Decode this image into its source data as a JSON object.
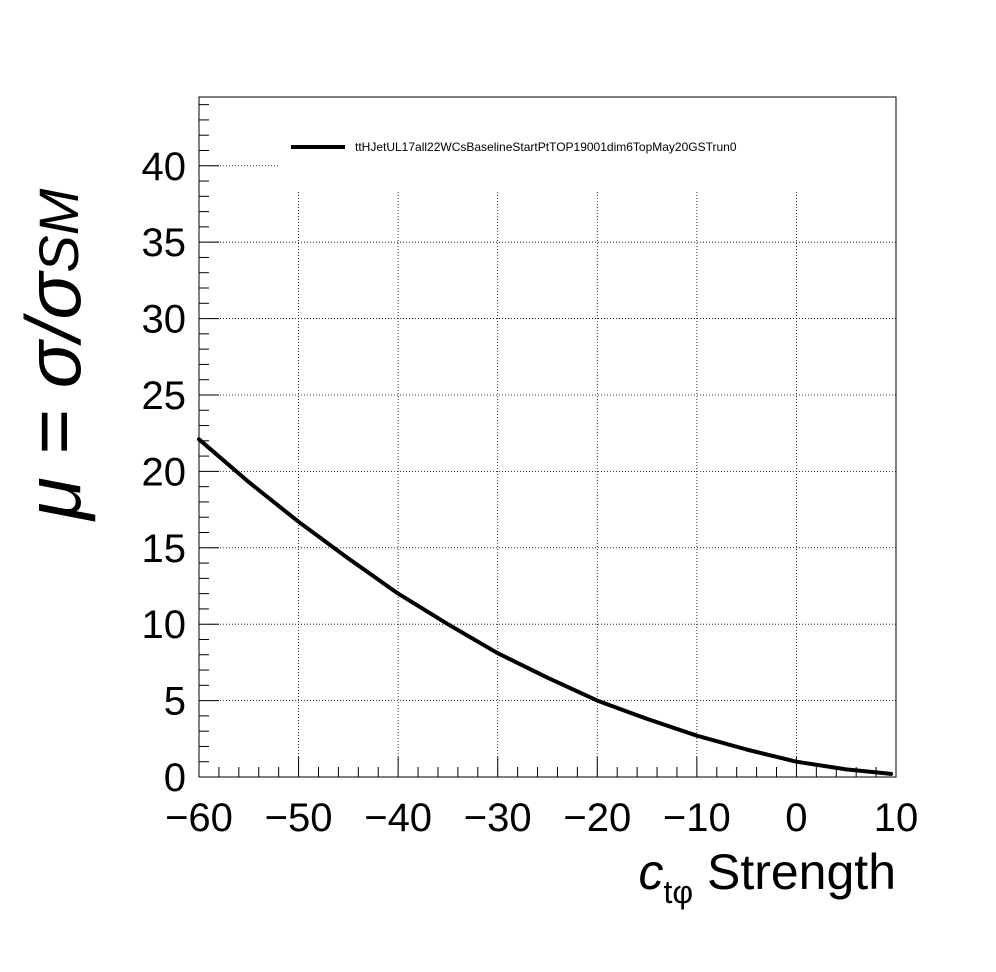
{
  "chart_data": {
    "type": "line",
    "xlabel": {
      "symbol": "c",
      "subscript": "tφ",
      "suffix": " Strength"
    },
    "ylabel": {
      "prefix": "μ = σ/σ",
      "subscript": "SM"
    },
    "xlim": [
      -60,
      10
    ],
    "ylim": [
      0,
      44.5
    ],
    "x_ticks": [
      -60,
      -50,
      -40,
      -30,
      -20,
      -10,
      0,
      10
    ],
    "x_tick_labels": [
      "−60",
      "−50",
      "−40",
      "−30",
      "−20",
      "−10",
      "0",
      "10"
    ],
    "y_ticks": [
      0,
      5,
      10,
      15,
      20,
      25,
      30,
      35,
      40
    ],
    "y_tick_labels": [
      "0",
      "5",
      "10",
      "15",
      "20",
      "25",
      "30",
      "35",
      "40"
    ],
    "grid": true,
    "legend_position": "top",
    "series": [
      {
        "name": "ttHJetUL17all22WCsBaselineStartPtTOP19001dim6TopMay20GSTrun0",
        "color": "#000000",
        "x": [
          -60,
          -55,
          -50,
          -45,
          -40,
          -35,
          -30,
          -25,
          -20,
          -15,
          -10,
          -5,
          0,
          5,
          9.5
        ],
        "y": [
          22.1,
          19.3,
          16.7,
          14.3,
          12.0,
          10.0,
          8.1,
          6.5,
          5.0,
          3.8,
          2.7,
          1.8,
          1.0,
          0.5,
          0.2
        ]
      }
    ]
  }
}
